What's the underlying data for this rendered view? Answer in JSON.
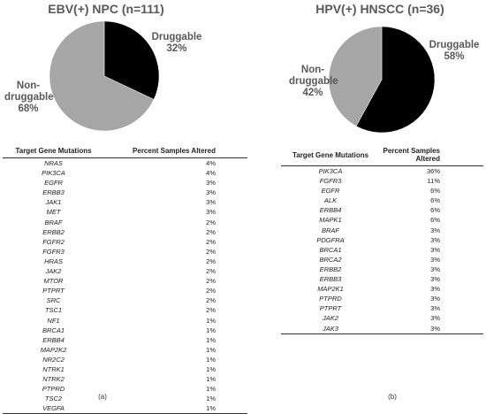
{
  "chart_data": [
    {
      "type": "pie",
      "title": "EBV(+) NPC (n=111)",
      "categories": [
        "Druggable",
        "Non-druggable"
      ],
      "values": [
        32,
        68
      ],
      "value_labels": [
        "32%",
        "68%"
      ],
      "colors": [
        "#000000",
        "#a6a6a6"
      ]
    },
    {
      "type": "pie",
      "title": "HPV(+) HNSCC (n=36)",
      "categories": [
        "Druggable",
        "Non-druggable"
      ],
      "values": [
        58,
        42
      ],
      "value_labels": [
        "58%",
        "42%"
      ],
      "colors": [
        "#000000",
        "#a6a6a6"
      ]
    }
  ],
  "tables": [
    {
      "columns": [
        "Target Gene Mutations",
        "Percent Samples Altered"
      ],
      "rows": [
        [
          "NRAS",
          "4%"
        ],
        [
          "PIK3CA",
          "4%"
        ],
        [
          "EGFR",
          "3%"
        ],
        [
          "ERBB3",
          "3%"
        ],
        [
          "JAK1",
          "3%"
        ],
        [
          "MET",
          "3%"
        ],
        [
          "BRAF",
          "2%"
        ],
        [
          "ERBB2",
          "2%"
        ],
        [
          "FGFR2",
          "2%"
        ],
        [
          "FGFR3",
          "2%"
        ],
        [
          "HRAS",
          "2%"
        ],
        [
          "JAK2",
          "2%"
        ],
        [
          "MTOR",
          "2%"
        ],
        [
          "PTPRT",
          "2%"
        ],
        [
          "SRC",
          "2%"
        ],
        [
          "TSC1",
          "2%"
        ],
        [
          "NF1",
          "1%"
        ],
        [
          "BRCA1",
          "1%"
        ],
        [
          "ERBB4",
          "1%"
        ],
        [
          "MAP2K2",
          "1%"
        ],
        [
          "NR2C2",
          "1%"
        ],
        [
          "NTRK1",
          "1%"
        ],
        [
          "NTRK2",
          "1%"
        ],
        [
          "PTPRD",
          "1%"
        ],
        [
          "TSC2",
          "1%"
        ],
        [
          "VEGFA",
          "1%"
        ]
      ],
      "caption": "(a)"
    },
    {
      "columns": [
        "Target Gene Mutations",
        "Percent Samples Altered"
      ],
      "rows": [
        [
          "PIK3CA",
          "36%"
        ],
        [
          "FGFR3",
          "11%"
        ],
        [
          "EGFR",
          "6%"
        ],
        [
          "ALK",
          "6%"
        ],
        [
          "ERBB4",
          "6%"
        ],
        [
          "MAPK1",
          "6%"
        ],
        [
          "BRAF",
          "3%"
        ],
        [
          "PDGFRA",
          "3%"
        ],
        [
          "BRCA1",
          "3%"
        ],
        [
          "BRCA2",
          "3%"
        ],
        [
          "ERBB2",
          "3%"
        ],
        [
          "ERBB3",
          "3%"
        ],
        [
          "MAP2K1",
          "3%"
        ],
        [
          "PTPRD",
          "3%"
        ],
        [
          "PTPRT",
          "3%"
        ],
        [
          "JAK2",
          "3%"
        ],
        [
          "JAK3",
          "3%"
        ]
      ],
      "caption": "(b)"
    }
  ]
}
